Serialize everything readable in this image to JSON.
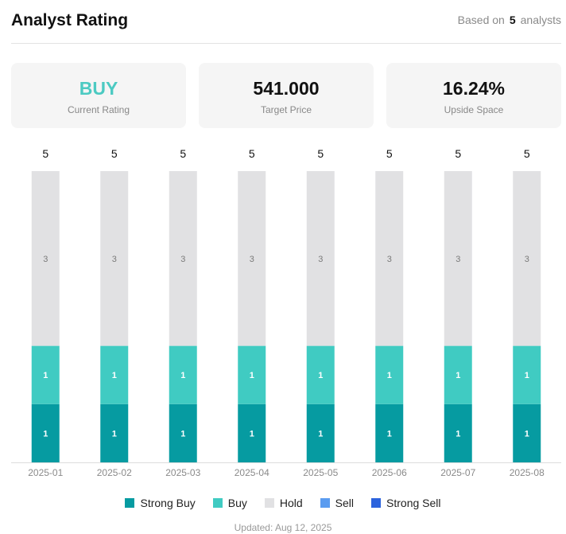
{
  "header": {
    "title": "Analyst Rating",
    "based_prefix": "Based on",
    "based_count": "5",
    "based_suffix": "analysts"
  },
  "cards": {
    "rating": {
      "value": "BUY",
      "label": "Current Rating"
    },
    "target": {
      "value": "541.000",
      "label": "Target Price"
    },
    "upside": {
      "value": "16.24%",
      "label": "Upside Space"
    }
  },
  "colors": {
    "strong_buy": "#069ba1",
    "buy": "#40cbc2",
    "hold": "#e1e1e3",
    "sell": "#5b9cf0",
    "strong_sell": "#2c63dd"
  },
  "chart_data": {
    "type": "bar",
    "stacked": true,
    "categories": [
      "2025-01",
      "2025-02",
      "2025-03",
      "2025-04",
      "2025-05",
      "2025-06",
      "2025-07",
      "2025-08"
    ],
    "series": [
      {
        "name": "Strong Buy",
        "key": "strong_buy",
        "values": [
          1,
          1,
          1,
          1,
          1,
          1,
          1,
          1
        ]
      },
      {
        "name": "Buy",
        "key": "buy",
        "values": [
          1,
          1,
          1,
          1,
          1,
          1,
          1,
          1
        ]
      },
      {
        "name": "Hold",
        "key": "hold",
        "values": [
          3,
          3,
          3,
          3,
          3,
          3,
          3,
          3
        ]
      },
      {
        "name": "Sell",
        "key": "sell",
        "values": [
          0,
          0,
          0,
          0,
          0,
          0,
          0,
          0
        ]
      },
      {
        "name": "Strong Sell",
        "key": "strong_sell",
        "values": [
          0,
          0,
          0,
          0,
          0,
          0,
          0,
          0
        ]
      }
    ],
    "totals": [
      5,
      5,
      5,
      5,
      5,
      5,
      5,
      5
    ],
    "ylim": [
      0,
      5
    ]
  },
  "legend": [
    "Strong Buy",
    "Buy",
    "Hold",
    "Sell",
    "Strong Sell"
  ],
  "footer": {
    "updated": "Updated: Aug 12, 2025"
  }
}
